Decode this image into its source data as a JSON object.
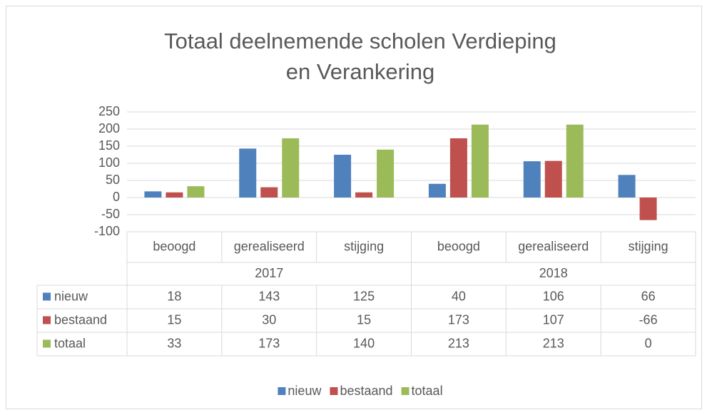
{
  "chart_data": {
    "type": "bar",
    "title": "Totaal deelnemende scholen Verdieping en Verankering",
    "categories": [
      "beoogd",
      "gerealiseerd",
      "stijging",
      "beoogd",
      "gerealiseerd",
      "stijging"
    ],
    "category_groups": [
      "2017",
      "2018"
    ],
    "series": [
      {
        "name": "nieuw",
        "color": "#4f81bd",
        "values": [
          18,
          143,
          125,
          40,
          106,
          66
        ]
      },
      {
        "name": "bestaand",
        "color": "#c0504d",
        "values": [
          15,
          30,
          15,
          173,
          107,
          -66
        ]
      },
      {
        "name": "totaal",
        "color": "#9bbb59",
        "values": [
          33,
          173,
          140,
          213,
          213,
          0
        ]
      }
    ],
    "ylim": [
      -100,
      250
    ],
    "yticks": [
      -100,
      -50,
      0,
      50,
      100,
      150,
      200,
      250
    ],
    "grid": true,
    "legend": "bottom",
    "data_table": true
  }
}
